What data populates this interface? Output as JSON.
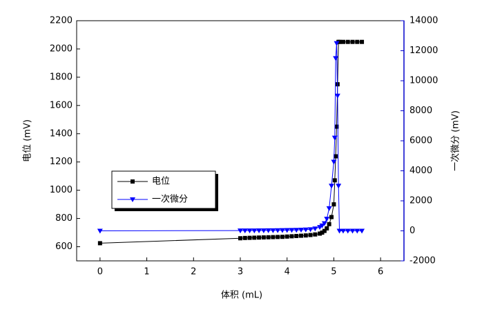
{
  "chart_data": {
    "type": "line",
    "x_label": "体积 (mL)",
    "y_label": "电位 (mV)",
    "y2_label": "一次微分 (mV)",
    "x": [
      0,
      3,
      3.1,
      3.2,
      3.3,
      3.4,
      3.5,
      3.6,
      3.7,
      3.8,
      3.9,
      4.0,
      4.1,
      4.2,
      4.3,
      4.4,
      4.5,
      4.6,
      4.7,
      4.75,
      4.8,
      4.85,
      4.9,
      4.95,
      5.0,
      5.02,
      5.04,
      5.06,
      5.08,
      5.1,
      5.12,
      5.2,
      5.3,
      5.4,
      5.5,
      5.6
    ],
    "series": [
      {
        "name": "电位",
        "color": "#000000",
        "marker": "square",
        "values": [
          625,
          660,
          662,
          663,
          664,
          665,
          666,
          667,
          668,
          669,
          670,
          672,
          674,
          676,
          678,
          680,
          683,
          687,
          693,
          700,
          712,
          730,
          760,
          810,
          900,
          1070,
          1240,
          1450,
          1750,
          2050,
          2050,
          2050,
          2050,
          2050,
          2050,
          2050
        ]
      },
      {
        "name": "一次微分",
        "color": "#0000ff",
        "marker": "triangle-down",
        "axis": "y2",
        "values": [
          0,
          20,
          20,
          20,
          20,
          25,
          25,
          30,
          30,
          35,
          40,
          45,
          50,
          60,
          70,
          80,
          100,
          150,
          250,
          350,
          500,
          800,
          1500,
          3000,
          4600,
          6200,
          11500,
          12500,
          9000,
          3000,
          0,
          0,
          0,
          0,
          0,
          0
        ]
      }
    ],
    "xlim": [
      -0.5,
      6.5
    ],
    "xticks": [
      0,
      1,
      2,
      3,
      4,
      5,
      6
    ],
    "ylim": [
      500,
      2200
    ],
    "yticks": [
      600,
      800,
      1000,
      1200,
      1400,
      1600,
      1800,
      2000,
      2200
    ],
    "y2lim": [
      -2000,
      14000
    ],
    "y2ticks": [
      -2000,
      0,
      2000,
      4000,
      6000,
      8000,
      10000,
      12000,
      14000
    ],
    "y2_color": "#0000cc",
    "legend": "center-left"
  }
}
